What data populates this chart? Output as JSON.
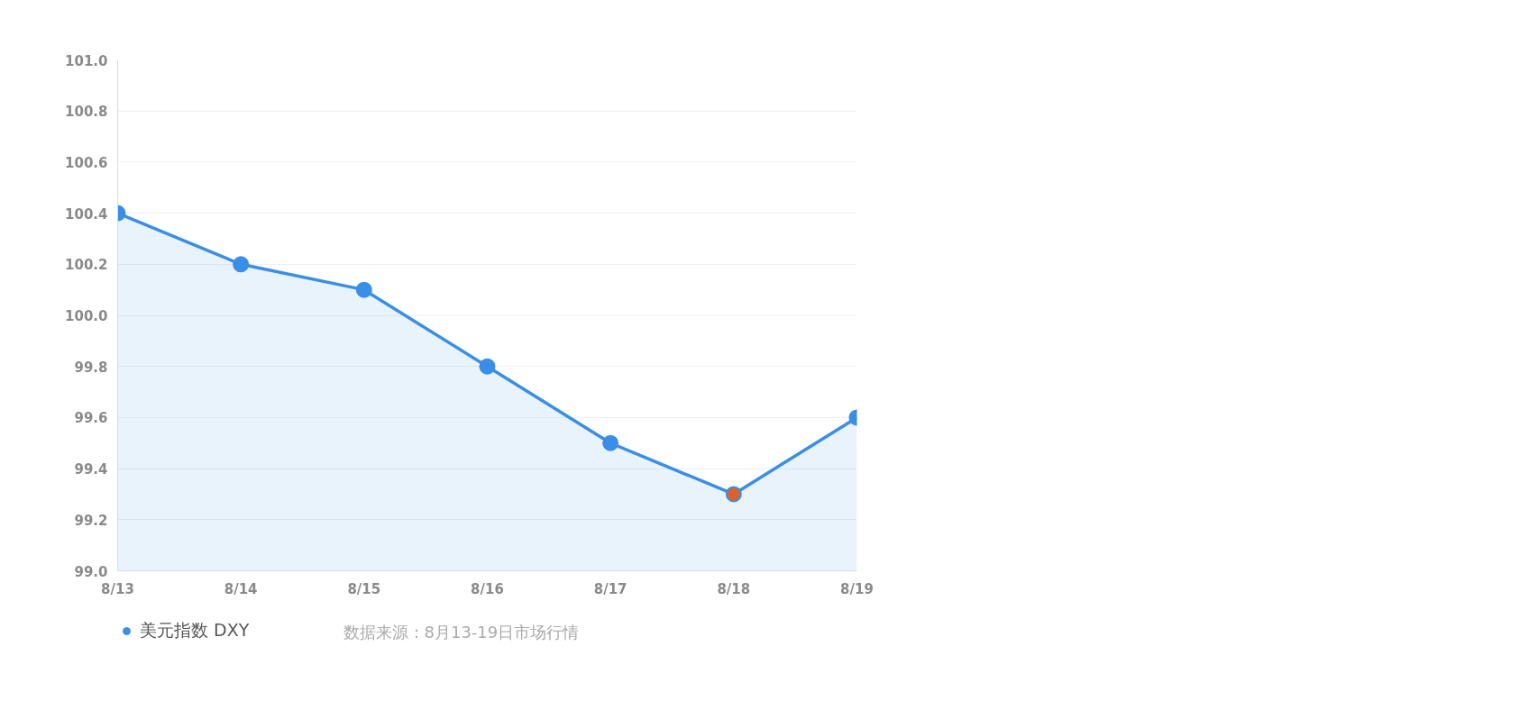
{
  "chart_data": {
    "type": "area",
    "categories": [
      "8/13",
      "8/14",
      "8/15",
      "8/16",
      "8/17",
      "8/18",
      "8/19"
    ],
    "series": [
      {
        "name": "美元指数 DXY",
        "color": "#3a8ee6",
        "values": [
          100.4,
          100.2,
          100.1,
          99.8,
          99.5,
          99.3,
          99.6
        ],
        "colors": [
          "#3a8ee6",
          "#3a8ee6",
          "#3a8ee6",
          "#3a8ee6",
          "#3a8ee6",
          "#d9622b",
          "#3a8ee6"
        ]
      }
    ],
    "ylim": [
      99.0,
      101.0
    ],
    "yticks": [
      {
        "value": 99.0,
        "label": "99.0"
      },
      {
        "value": 99.2,
        "label": "99.2"
      },
      {
        "value": 99.4,
        "label": "99.4"
      },
      {
        "value": 99.6,
        "label": "99.6"
      },
      {
        "value": 99.8,
        "label": "99.8"
      },
      {
        "value": 100.0,
        "label": "100.0"
      },
      {
        "value": 100.2,
        "label": "100.2"
      },
      {
        "value": 100.4,
        "label": "100.4"
      },
      {
        "value": 100.6,
        "label": "100.6"
      },
      {
        "value": 100.8,
        "label": "100.8"
      },
      {
        "value": 101.0,
        "label": "101.0"
      }
    ],
    "grid": "y",
    "legend": "bottom left",
    "marker": "circle",
    "line_style": "solid",
    "annotations": [
      "数据来源：8月13-19日市场行情"
    ]
  }
}
